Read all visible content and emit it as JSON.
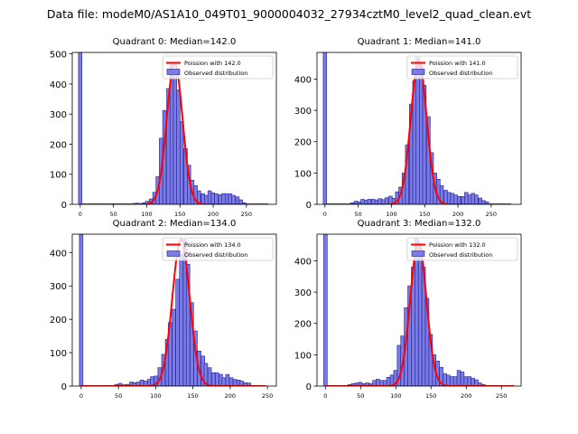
{
  "suptitle": "Data file: modeM0/AS1A10_049T01_9000004032_27934cztM0_level2_quad_clean.evt",
  "colors": {
    "bar_fill": "#7b7be6",
    "bar_edge": "#1f1f8f",
    "poisson_line": "#ff0000",
    "axis": "#000000"
  },
  "chart_data": [
    {
      "type": "bar",
      "title": "Quadrant 0: Median=142.0",
      "xlim": [
        -12,
        295
      ],
      "ylim": [
        0,
        505
      ],
      "xticks": [
        0,
        50,
        100,
        150,
        200,
        250
      ],
      "yticks": [
        0,
        100,
        200,
        300,
        400,
        500
      ],
      "bin_width": 5.2,
      "legend": {
        "position": "upper-right",
        "line_label": "Poission with 142.0",
        "bar_label": "Observed distribution"
      },
      "spike": {
        "x": 0,
        "value": 505
      },
      "bars": [
        [
          78,
          3
        ],
        [
          83,
          4
        ],
        [
          88,
          3
        ],
        [
          93,
          5
        ],
        [
          98,
          10
        ],
        [
          104,
          18
        ],
        [
          109,
          40
        ],
        [
          114,
          92
        ],
        [
          119,
          220
        ],
        [
          124,
          312
        ],
        [
          130,
          385
        ],
        [
          135,
          470
        ],
        [
          140,
          440
        ],
        [
          145,
          380
        ],
        [
          150,
          275
        ],
        [
          156,
          185
        ],
        [
          161,
          130
        ],
        [
          166,
          80
        ],
        [
          171,
          62
        ],
        [
          176,
          45
        ],
        [
          182,
          35
        ],
        [
          187,
          30
        ],
        [
          192,
          45
        ],
        [
          197,
          38
        ],
        [
          202,
          35
        ],
        [
          208,
          32
        ],
        [
          213,
          36
        ],
        [
          218,
          35
        ],
        [
          223,
          35
        ],
        [
          228,
          30
        ],
        [
          234,
          25
        ],
        [
          239,
          15
        ],
        [
          244,
          5
        ]
      ],
      "poisson": {
        "mean": 142.0,
        "peak": 470,
        "x_end": 283
      }
    },
    {
      "type": "bar",
      "title": "Quadrant 1: Median=141.0",
      "xlim": [
        -12,
        295
      ],
      "ylim": [
        0,
        485
      ],
      "xticks": [
        0,
        50,
        100,
        150,
        200,
        250
      ],
      "yticks": [
        0,
        100,
        200,
        300,
        400
      ],
      "bin_width": 5.2,
      "legend": {
        "position": "upper-right",
        "line_label": "Poission with 141.0",
        "bar_label": "Observed distribution"
      },
      "spike": {
        "x": 0,
        "value": 485
      },
      "bars": [
        [
          38,
          5
        ],
        [
          44,
          10
        ],
        [
          49,
          8
        ],
        [
          54,
          16
        ],
        [
          59,
          13
        ],
        [
          64,
          16
        ],
        [
          70,
          16
        ],
        [
          75,
          14
        ],
        [
          80,
          18
        ],
        [
          85,
          15
        ],
        [
          90,
          21
        ],
        [
          96,
          26
        ],
        [
          101,
          19
        ],
        [
          106,
          40
        ],
        [
          111,
          55
        ],
        [
          116,
          100
        ],
        [
          121,
          190
        ],
        [
          127,
          320
        ],
        [
          132,
          395
        ],
        [
          137,
          470
        ],
        [
          142,
          440
        ],
        [
          147,
          380
        ],
        [
          153,
          280
        ],
        [
          158,
          165
        ],
        [
          163,
          100
        ],
        [
          168,
          80
        ],
        [
          173,
          60
        ],
        [
          179,
          45
        ],
        [
          184,
          38
        ],
        [
          189,
          35
        ],
        [
          194,
          30
        ],
        [
          199,
          25
        ],
        [
          205,
          25
        ],
        [
          210,
          38
        ],
        [
          215,
          30
        ],
        [
          220,
          35
        ],
        [
          225,
          30
        ],
        [
          231,
          20
        ],
        [
          236,
          12
        ],
        [
          241,
          8
        ]
      ],
      "poisson": {
        "mean": 141.0,
        "peak": 460,
        "x_end": 280
      }
    },
    {
      "type": "bar",
      "title": "Quadrant 2: Median=134.0",
      "xlim": [
        -12,
        262
      ],
      "ylim": [
        0,
        455
      ],
      "xticks": [
        0,
        50,
        100,
        150,
        200,
        250
      ],
      "yticks": [
        0,
        100,
        200,
        300,
        400
      ],
      "bin_width": 4.8,
      "legend": {
        "position": "upper-right",
        "line_label": "Poission with 134.0",
        "bar_label": "Observed distribution"
      },
      "spike": {
        "x": 0,
        "value": 455
      },
      "bars": [
        [
          45,
          5
        ],
        [
          50,
          8
        ],
        [
          55,
          4
        ],
        [
          60,
          5
        ],
        [
          65,
          12
        ],
        [
          69,
          10
        ],
        [
          74,
          12
        ],
        [
          79,
          18
        ],
        [
          84,
          15
        ],
        [
          89,
          20
        ],
        [
          93,
          28
        ],
        [
          98,
          30
        ],
        [
          103,
          55
        ],
        [
          108,
          95
        ],
        [
          113,
          140
        ],
        [
          117,
          190
        ],
        [
          122,
          230
        ],
        [
          127,
          320
        ],
        [
          132,
          395
        ],
        [
          137,
          440
        ],
        [
          141,
          365
        ],
        [
          146,
          250
        ],
        [
          151,
          165
        ],
        [
          156,
          105
        ],
        [
          161,
          90
        ],
        [
          165,
          68
        ],
        [
          170,
          55
        ],
        [
          175,
          40
        ],
        [
          180,
          40
        ],
        [
          185,
          35
        ],
        [
          189,
          25
        ],
        [
          194,
          35
        ],
        [
          199,
          25
        ],
        [
          204,
          20
        ],
        [
          209,
          18
        ],
        [
          213,
          15
        ],
        [
          218,
          10
        ],
        [
          223,
          9
        ]
      ],
      "poisson": {
        "mean": 134.0,
        "peak": 440,
        "x_end": 248
      }
    },
    {
      "type": "bar",
      "title": "Quadrant 3: Median=132.0",
      "xlim": [
        -12,
        278
      ],
      "ylim": [
        0,
        485
      ],
      "xticks": [
        0,
        50,
        100,
        150,
        200,
        250
      ],
      "yticks": [
        0,
        100,
        200,
        300,
        400
      ],
      "bin_width": 5.0,
      "legend": {
        "position": "upper-right",
        "line_label": "Poission with 132.0",
        "bar_label": "Observed distribution"
      },
      "spike": {
        "x": 0,
        "value": 485
      },
      "bars": [
        [
          32,
          5
        ],
        [
          37,
          8
        ],
        [
          42,
          10
        ],
        [
          47,
          12
        ],
        [
          52,
          8
        ],
        [
          57,
          10
        ],
        [
          62,
          8
        ],
        [
          67,
          18
        ],
        [
          72,
          22
        ],
        [
          77,
          18
        ],
        [
          82,
          18
        ],
        [
          87,
          28
        ],
        [
          92,
          35
        ],
        [
          97,
          50
        ],
        [
          102,
          130
        ],
        [
          107,
          160
        ],
        [
          112,
          250
        ],
        [
          117,
          320
        ],
        [
          122,
          380
        ],
        [
          127,
          470
        ],
        [
          132,
          440
        ],
        [
          137,
          380
        ],
        [
          142,
          280
        ],
        [
          147,
          165
        ],
        [
          152,
          100
        ],
        [
          157,
          80
        ],
        [
          162,
          60
        ],
        [
          167,
          40
        ],
        [
          172,
          35
        ],
        [
          177,
          30
        ],
        [
          182,
          30
        ],
        [
          187,
          50
        ],
        [
          192,
          45
        ],
        [
          197,
          30
        ],
        [
          202,
          30
        ],
        [
          207,
          25
        ],
        [
          212,
          20
        ],
        [
          217,
          10
        ],
        [
          222,
          5
        ]
      ],
      "poisson": {
        "mean": 132.0,
        "peak": 460,
        "x_end": 268
      }
    }
  ]
}
